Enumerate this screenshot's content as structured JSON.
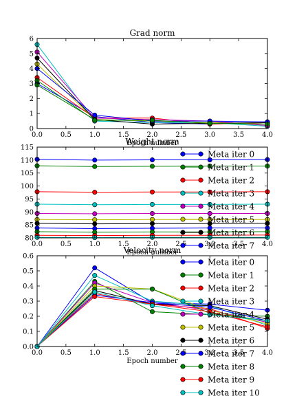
{
  "colors": [
    "#0000ff",
    "#008000",
    "#ff0000",
    "#00bfbf",
    "#bf00bf",
    "#bfbf00",
    "#000000"
  ],
  "chart_data": [
    {
      "type": "line",
      "title": "Grad norm",
      "xlabel": "Epoch number",
      "ylabel": "",
      "xlim": [
        0,
        4
      ],
      "ylim": [
        0,
        6
      ],
      "xticks": [
        "0.0",
        "0.5",
        "1.0",
        "1.5",
        "2.0",
        "2.5",
        "3.0",
        "3.5",
        "4.0"
      ],
      "yticks": [
        "0",
        "1",
        "2",
        "3",
        "4",
        "5",
        "6"
      ],
      "x": [
        0,
        1,
        2,
        3,
        4
      ],
      "legend": "",
      "series": [
        {
          "values": [
            3.0,
            0.8,
            0.4,
            0.3,
            0.4
          ]
        },
        {
          "values": [
            2.9,
            0.6,
            0.5,
            0.4,
            0.3
          ]
        },
        {
          "values": [
            3.4,
            0.7,
            0.7,
            0.3,
            0.4
          ]
        },
        {
          "values": [
            5.6,
            0.5,
            0.4,
            0.4,
            0.15
          ]
        },
        {
          "values": [
            5.1,
            0.7,
            0.6,
            0.5,
            0.2
          ]
        },
        {
          "values": [
            4.3,
            0.6,
            0.5,
            0.4,
            0.3
          ]
        },
        {
          "values": [
            4.7,
            0.6,
            0.3,
            0.35,
            0.4
          ]
        },
        {
          "values": [
            4.0,
            0.9,
            0.5,
            0.5,
            0.45
          ]
        },
        {
          "values": [
            3.2,
            0.55,
            0.55,
            0.35,
            0.3
          ]
        }
      ]
    },
    {
      "type": "line",
      "title": "Weight norm",
      "xlabel": "Epoch number",
      "ylabel": "",
      "xlim": [
        0,
        4
      ],
      "ylim": [
        80,
        115
      ],
      "xticks": [
        "0.0",
        "0.5",
        "1.0",
        "1.5",
        "2.0",
        "2.5",
        "3.0",
        "3.5",
        "4.0"
      ],
      "yticks": [
        "80",
        "85",
        "90",
        "95",
        "100",
        "105",
        "110",
        "115"
      ],
      "x": [
        0,
        1,
        2,
        3,
        4
      ],
      "legend": "right",
      "series": [
        {
          "name": "Meta iter 0",
          "values": [
            110.3,
            110.0,
            110.1,
            110.1,
            110.2
          ]
        },
        {
          "name": "Meta iter 1",
          "values": [
            107.8,
            107.5,
            107.6,
            107.7,
            107.7
          ]
        },
        {
          "name": "Meta iter 2",
          "values": [
            97.8,
            97.6,
            97.7,
            97.7,
            97.8
          ]
        },
        {
          "name": "Meta iter 3",
          "values": [
            93.0,
            92.8,
            92.9,
            92.9,
            93.0
          ]
        },
        {
          "name": "Meta iter 4",
          "values": [
            89.4,
            89.3,
            89.4,
            89.4,
            89.4
          ]
        },
        {
          "name": "Meta iter 5",
          "values": [
            87.1,
            87.0,
            87.1,
            87.1,
            87.1
          ]
        },
        {
          "name": "Meta iter 6",
          "values": [
            85.6,
            85.4,
            85.5,
            85.5,
            85.6
          ]
        },
        {
          "name": "Meta iter 7",
          "values": [
            83.8,
            83.6,
            83.7,
            83.8,
            83.8
          ]
        },
        {
          "name": "",
          "values": [
            82.4,
            82.2,
            82.3,
            82.3,
            82.4
          ]
        },
        {
          "name": "",
          "values": [
            81.0,
            80.9,
            81.0,
            81.0,
            81.1
          ]
        },
        {
          "name": "",
          "values": [
            80.2,
            80.1,
            80.2,
            80.2,
            80.2
          ]
        }
      ]
    },
    {
      "type": "line",
      "title": "Velocity norm",
      "xlabel": "Epoch number",
      "ylabel": "",
      "xlim": [
        0,
        4
      ],
      "ylim": [
        0,
        0.6
      ],
      "xticks": [
        "0.0",
        "0.5",
        "1.0",
        "1.5",
        "2.0",
        "2.5",
        "3.0",
        "3.5",
        "4.0"
      ],
      "yticks": [
        "0.0",
        "0.1",
        "0.2",
        "0.3",
        "0.4",
        "0.5",
        "0.6"
      ],
      "x": [
        0,
        1,
        2,
        3,
        4
      ],
      "legend": "right",
      "series": [
        {
          "name": "Meta iter 0",
          "values": [
            0.0,
            0.52,
            0.29,
            0.28,
            0.24
          ]
        },
        {
          "name": "Meta iter 1",
          "values": [
            0.0,
            0.43,
            0.23,
            0.21,
            0.2
          ]
        },
        {
          "name": "Meta iter 2",
          "values": [
            0.0,
            0.35,
            0.28,
            0.25,
            0.12
          ]
        },
        {
          "name": "Meta iter 3",
          "values": [
            0.0,
            0.47,
            0.3,
            0.27,
            0.14
          ]
        },
        {
          "name": "Meta iter 4",
          "values": [
            0.0,
            0.42,
            0.29,
            0.24,
            0.16
          ]
        },
        {
          "name": "Meta iter 5",
          "values": [
            0.0,
            0.4,
            0.38,
            0.24,
            0.15
          ]
        },
        {
          "name": "Meta iter 6",
          "values": [
            0.0,
            0.37,
            0.28,
            0.27,
            0.18
          ]
        },
        {
          "name": "Meta iter 7",
          "values": [
            0.0,
            0.34,
            0.29,
            0.26,
            0.17
          ]
        },
        {
          "name": "Meta iter 8",
          "values": [
            0.0,
            0.38,
            0.38,
            0.22,
            0.17
          ]
        },
        {
          "name": "Meta iter 9",
          "values": [
            0.0,
            0.33,
            0.28,
            0.23,
            0.13
          ]
        },
        {
          "name": "Meta iter 10",
          "values": [
            0.0,
            0.36,
            0.27,
            0.21,
            0.17
          ]
        }
      ]
    }
  ]
}
